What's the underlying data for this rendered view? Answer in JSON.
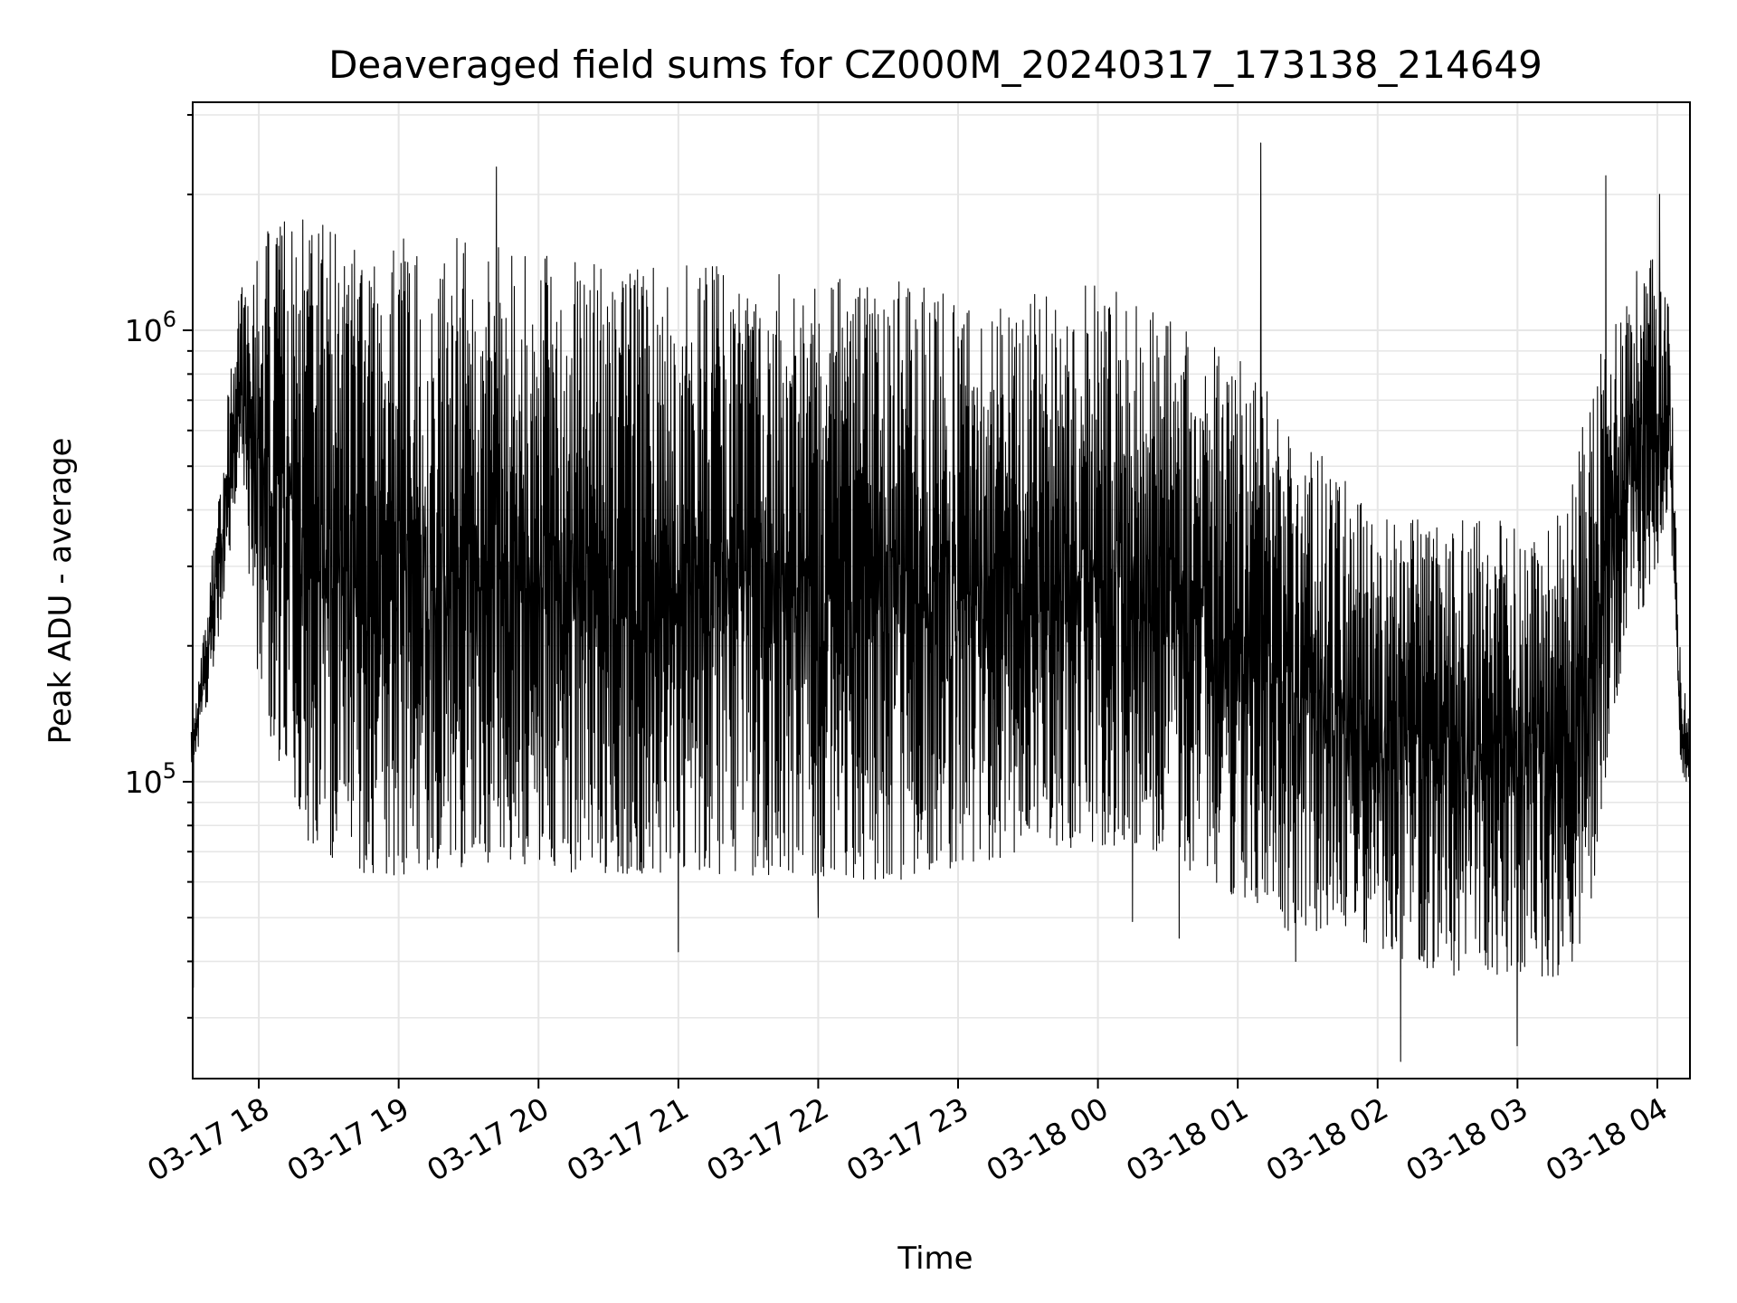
{
  "chart_data": {
    "type": "line",
    "title": "Deaveraged field sums for CZ000M_20240317_173138_214649",
    "xlabel": "Time",
    "ylabel": "Peak ADU - average",
    "yscale": "log",
    "grid": true,
    "color": "#000000",
    "xlim": [
      "2024-03-17 17:31:38",
      "2024-03-18 04:14:00"
    ],
    "ylim": [
      22000,
      3200000
    ],
    "x_ticks": [
      {
        "time": "2024-03-17 18:00",
        "label": "03-17 18"
      },
      {
        "time": "2024-03-17 19:00",
        "label": "03-17 19"
      },
      {
        "time": "2024-03-17 20:00",
        "label": "03-17 20"
      },
      {
        "time": "2024-03-17 21:00",
        "label": "03-17 21"
      },
      {
        "time": "2024-03-17 22:00",
        "label": "03-17 22"
      },
      {
        "time": "2024-03-17 23:00",
        "label": "03-17 23"
      },
      {
        "time": "2024-03-18 00:00",
        "label": "03-18 00"
      },
      {
        "time": "2024-03-18 01:00",
        "label": "03-18 01"
      },
      {
        "time": "2024-03-18 02:00",
        "label": "03-18 02"
      },
      {
        "time": "2024-03-18 03:00",
        "label": "03-18 03"
      },
      {
        "time": "2024-03-18 04:00",
        "label": "03-18 04"
      }
    ],
    "y_ticks": [
      {
        "value": 100000,
        "base": "10",
        "exp": "5"
      },
      {
        "value": 1000000,
        "base": "10",
        "exp": "6"
      }
    ],
    "envelope": {
      "time": [
        "2024-03-17 17:31",
        "2024-03-17 17:38",
        "2024-03-17 17:45",
        "2024-03-17 17:52",
        "2024-03-17 18:00",
        "2024-03-17 18:20",
        "2024-03-17 18:40",
        "2024-03-17 19:00",
        "2024-03-17 19:30",
        "2024-03-17 20:00",
        "2024-03-17 20:30",
        "2024-03-17 21:00",
        "2024-03-17 21:30",
        "2024-03-17 22:00",
        "2024-03-17 22:30",
        "2024-03-17 23:00",
        "2024-03-17 23:30",
        "2024-03-18 00:00",
        "2024-03-18 00:30",
        "2024-03-18 01:00",
        "2024-03-18 01:20",
        "2024-03-18 01:40",
        "2024-03-18 02:00",
        "2024-03-18 02:30",
        "2024-03-18 03:00",
        "2024-03-18 03:20",
        "2024-03-18 03:30",
        "2024-03-18 03:45",
        "2024-03-18 04:00",
        "2024-03-18 04:05",
        "2024-03-18 04:10",
        "2024-03-18 04:14"
      ],
      "low": [
        100000,
        150000,
        250000,
        500000,
        150000,
        75000,
        62000,
        62000,
        65000,
        64000,
        62000,
        63000,
        62000,
        62000,
        60000,
        62000,
        70000,
        72000,
        68000,
        55000,
        47000,
        45000,
        42000,
        37000,
        37000,
        37000,
        45000,
        180000,
        300000,
        400000,
        100000,
        100000
      ],
      "high": [
        130000,
        250000,
        600000,
        1300000,
        1700000,
        1800000,
        1700000,
        1700000,
        1600000,
        1500000,
        1400000,
        1400000,
        1400000,
        1300000,
        1300000,
        1200000,
        1200000,
        1300000,
        1100000,
        900000,
        650000,
        500000,
        400000,
        380000,
        380000,
        400000,
        700000,
        1300000,
        1500000,
        1200000,
        180000,
        140000
      ]
    },
    "spikes": [
      {
        "time": "2024-03-17 17:32",
        "value": 35000
      },
      {
        "time": "2024-03-17 19:42",
        "value": 2300000
      },
      {
        "time": "2024-03-17 21:00",
        "value": 42000
      },
      {
        "time": "2024-03-17 22:00",
        "value": 50000
      },
      {
        "time": "2024-03-18 00:15",
        "value": 49000
      },
      {
        "time": "2024-03-18 00:35",
        "value": 45000
      },
      {
        "time": "2024-03-18 01:10",
        "value": 2600000
      },
      {
        "time": "2024-03-18 01:25",
        "value": 40000
      },
      {
        "time": "2024-03-18 02:10",
        "value": 24000
      },
      {
        "time": "2024-03-18 03:00",
        "value": 26000
      },
      {
        "time": "2024-03-18 03:38",
        "value": 2200000
      },
      {
        "time": "2024-03-18 04:01",
        "value": 2000000
      }
    ]
  }
}
